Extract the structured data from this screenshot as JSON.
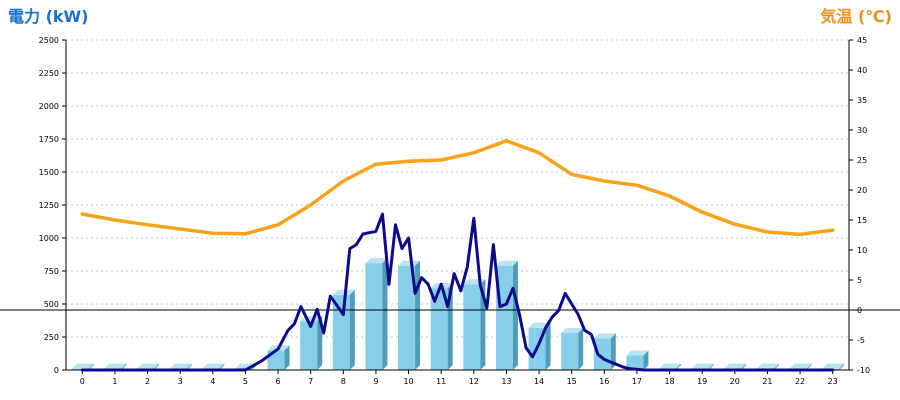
{
  "chart_data": {
    "type": "bar",
    "title_left": "電力 (kW)",
    "title_right": "気温 (℃)",
    "colors": {
      "title_left": "#1a73c9",
      "title_right": "#f0901a",
      "bar_front": "#87ceea",
      "bar_side": "#4f9dbd",
      "bar_top": "#b9e3f3",
      "temp_line": "#f7a21b",
      "power_line": "#0c0c8a",
      "zero_line": "#000000"
    },
    "categories": [
      "0",
      "1",
      "2",
      "3",
      "4",
      "5",
      "6",
      "7",
      "8",
      "9",
      "10",
      "11",
      "12",
      "13",
      "14",
      "15",
      "16",
      "17",
      "18",
      "19",
      "20",
      "21",
      "22",
      "23"
    ],
    "y_left": {
      "min": 0,
      "max": 2500,
      "step": 250,
      "ticks": [
        "0",
        "250",
        "500",
        "750",
        "1000",
        "1250",
        "1500",
        "1750",
        "2000",
        "2250",
        "2500"
      ]
    },
    "y_right": {
      "min": -10,
      "max": 45,
      "step": 5,
      "ticks": [
        "-10",
        "-5",
        "0",
        "5",
        "10",
        "15",
        "20",
        "25",
        "30",
        "35",
        "40",
        "45"
      ]
    },
    "grid": true,
    "series": [
      {
        "kind": "bar",
        "axis": "left",
        "values": [
          10,
          10,
          10,
          10,
          10,
          10,
          150,
          370,
          570,
          810,
          790,
          620,
          650,
          790,
          320,
          280,
          240,
          110,
          10,
          10,
          10,
          10,
          10,
          10
        ]
      },
      {
        "kind": "line",
        "axis": "right",
        "values": [
          16,
          15,
          14.2,
          13.5,
          12.8,
          12.7,
          14.2,
          17.5,
          21.5,
          24.3,
          24.8,
          25,
          26.2,
          28.2,
          26.2,
          22.6,
          21.5,
          20.8,
          19,
          16.3,
          14.3,
          13,
          12.6,
          13.3
        ]
      },
      {
        "kind": "line",
        "axis": "left",
        "x": [
          0,
          1,
          2,
          3,
          4,
          5,
          5.5,
          6,
          6.3,
          6.5,
          6.7,
          7,
          7.2,
          7.4,
          7.6,
          7.8,
          8,
          8.2,
          8.4,
          8.6,
          8.8,
          9,
          9.2,
          9.4,
          9.6,
          9.8,
          10,
          10.2,
          10.4,
          10.6,
          10.8,
          11,
          11.2,
          11.4,
          11.6,
          11.8,
          12,
          12.2,
          12.4,
          12.6,
          12.8,
          13,
          13.2,
          13.4,
          13.6,
          13.8,
          14,
          14.2,
          14.4,
          14.6,
          14.8,
          15,
          15.2,
          15.4,
          15.6,
          15.8,
          16,
          16.2,
          16.4,
          16.6,
          16.8,
          17,
          17.2,
          17.4,
          17.6,
          17.8,
          18,
          19,
          20,
          21,
          22,
          23
        ],
        "values": [
          0,
          0,
          0,
          0,
          0,
          0,
          70,
          160,
          300,
          350,
          480,
          330,
          460,
          280,
          560,
          490,
          420,
          920,
          950,
          1030,
          1040,
          1050,
          1180,
          650,
          1100,
          920,
          1000,
          580,
          700,
          650,
          520,
          650,
          480,
          730,
          600,
          780,
          1150,
          640,
          470,
          950,
          480,
          500,
          620,
          420,
          170,
          100,
          200,
          320,
          400,
          450,
          580,
          500,
          420,
          300,
          270,
          120,
          80,
          60,
          40,
          20,
          10,
          5,
          0,
          0,
          0,
          0,
          0,
          0,
          0,
          0,
          0,
          0
        ]
      }
    ],
    "reference_lines": [
      {
        "axis": "right",
        "value": 0
      }
    ]
  }
}
